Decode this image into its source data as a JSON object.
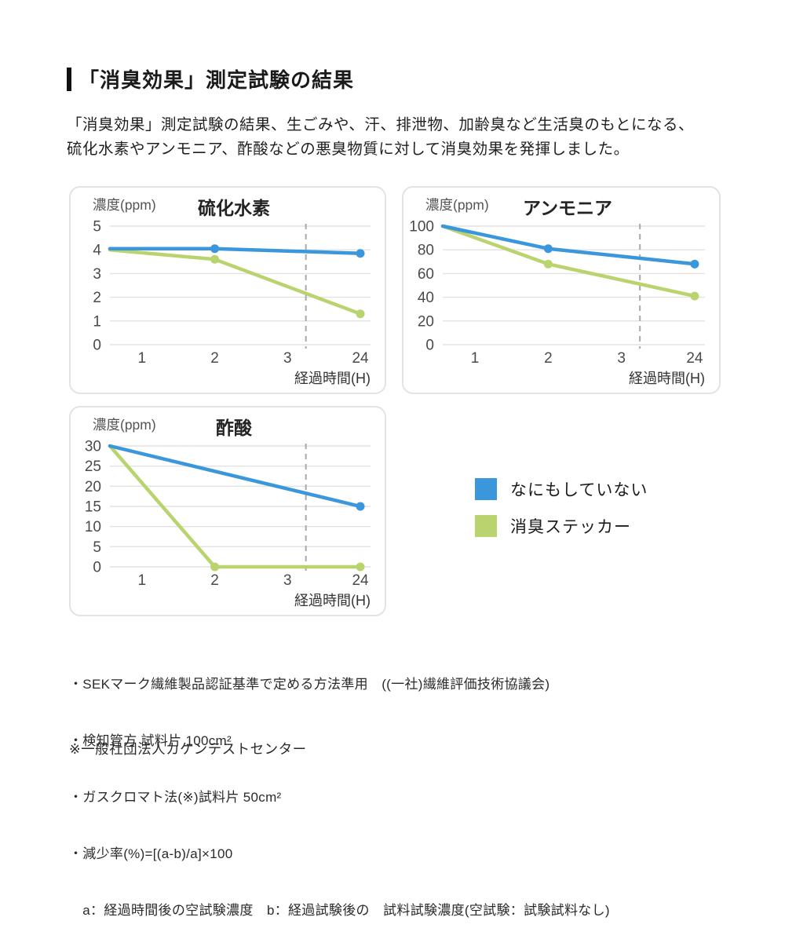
{
  "page": {
    "title": "「消臭効果」測定試験の結果",
    "intro_line1": "「消臭効果」測定試験の結果、生ごみや、汗、排泄物、加齢臭など生活臭のもとになる、",
    "intro_line2": "硫化水素やアンモニア、酢酸などの悪臭物質に対して消臭効果を発揮しました。"
  },
  "colors": {
    "blue": "#3b97dc",
    "green": "#b9d46e",
    "grid": "#e2e2e2",
    "dashed": "#a9a9a9",
    "tick_text": "#4a4a4a",
    "axis_label": "#555555",
    "title_text": "#222222"
  },
  "legend": {
    "items": [
      {
        "label": "なにもしていない",
        "color": "blue"
      },
      {
        "label": "消臭ステッカー",
        "color": "green"
      }
    ]
  },
  "chart_data": [
    {
      "type": "line",
      "title": "硫化水素",
      "ylabel": "濃度(ppm)",
      "xlabel": "経過時間(H)",
      "categories": [
        "1",
        "2",
        "3",
        "24"
      ],
      "ylim": [
        0,
        5
      ],
      "yticks": [
        5,
        4,
        3,
        2,
        1,
        0
      ],
      "dashed_guide_frac": 0.752,
      "series": [
        {
          "name": "なにもしていない",
          "color": "blue",
          "points": [
            {
              "x": "start",
              "y": 4.05
            },
            {
              "x": "2",
              "y": 4.05,
              "dot": true
            },
            {
              "x": "24",
              "y": 3.85,
              "dot": true
            }
          ]
        },
        {
          "name": "消臭ステッカー",
          "color": "green",
          "points": [
            {
              "x": "start",
              "y": 4.0
            },
            {
              "x": "2",
              "y": 3.6,
              "dot": true
            },
            {
              "x": "24",
              "y": 1.3,
              "dot": true
            }
          ]
        }
      ]
    },
    {
      "type": "line",
      "title": "アンモニア",
      "ylabel": "濃度(ppm)",
      "xlabel": "経過時間(H)",
      "categories": [
        "1",
        "2",
        "3",
        "24"
      ],
      "ylim": [
        0,
        100
      ],
      "yticks": [
        100,
        80,
        60,
        40,
        20,
        0
      ],
      "dashed_guide_frac": 0.752,
      "series": [
        {
          "name": "なにもしていない",
          "color": "blue",
          "points": [
            {
              "x": "start",
              "y": 100
            },
            {
              "x": "2",
              "y": 81,
              "dot": true
            },
            {
              "x": "24",
              "y": 68,
              "dot": true
            }
          ]
        },
        {
          "name": "消臭ステッカー",
          "color": "green",
          "points": [
            {
              "x": "start",
              "y": 100
            },
            {
              "x": "2",
              "y": 68,
              "dot": true
            },
            {
              "x": "24",
              "y": 41,
              "dot": true
            }
          ]
        }
      ]
    },
    {
      "type": "line",
      "title": "酢酸",
      "ylabel": "濃度(ppm)",
      "xlabel": "経過時間(H)",
      "categories": [
        "1",
        "2",
        "3",
        "24"
      ],
      "ylim": [
        0,
        30
      ],
      "yticks": [
        30,
        25,
        20,
        15,
        10,
        5,
        0
      ],
      "dashed_guide_frac": 0.752,
      "series": [
        {
          "name": "なにもしていない",
          "color": "blue",
          "points": [
            {
              "x": "start",
              "y": 30
            },
            {
              "x": "24",
              "y": 15,
              "dot": true
            }
          ]
        },
        {
          "name": "消臭ステッカー",
          "color": "green",
          "points": [
            {
              "x": "start",
              "y": 30
            },
            {
              "x": "2",
              "y": 0,
              "dot": true
            },
            {
              "x": "24",
              "y": 0,
              "dot": true
            }
          ]
        }
      ]
    }
  ],
  "footnotes": {
    "lines": [
      "・SEKマーク繊維製品認証基準で定める方法準用　((一社)繊維評価技術協議会)",
      "・検知管方 試料片 100cm²",
      "・ガスクロマト法(※)試料片 50cm²",
      "・減少率(%)=[(a-b)/a]×100",
      "　a：経過時間後の空試験濃度　b：経過試験後の　試料試験濃度(空試験：試験試料なし)"
    ],
    "note": "※一般社団法人カケンテストセンター"
  }
}
